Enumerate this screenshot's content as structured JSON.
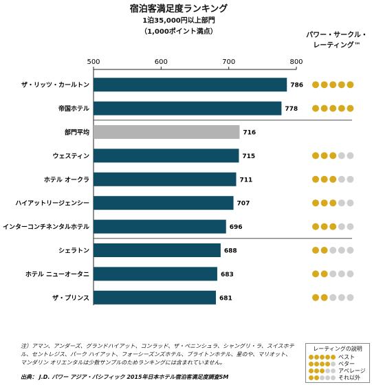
{
  "header": {
    "title": "宿泊客満足度ランキング",
    "subtitle_line1": "1泊35,000円以上部門",
    "subtitle_line2": "（1,000ポイント満点）",
    "power_circle_header_line1": "パワー・サークル・",
    "power_circle_header_line2": "レーティング™"
  },
  "colors": {
    "bar": "#0e4d64",
    "bar_average": "#b3b3b3",
    "dot_filled": "#d6a91f",
    "dot_empty": "#cfcfcf"
  },
  "chart_data": {
    "type": "bar",
    "orientation": "horizontal",
    "title": "宿泊客満足度ランキング",
    "xlim": [
      500,
      800
    ],
    "x_ticks": [
      500,
      600,
      700,
      800
    ],
    "categories": [
      "ザ・リッツ・カールトン",
      "帝国ホテル",
      "部門平均",
      "ウェスティン",
      "ホテル オークラ",
      "ハイアットリージェンシー",
      "インターコンチネンタルホテル",
      "シェラトン",
      "ホテル ニューオータニ",
      "ザ・プリンス"
    ],
    "values": [
      786,
      778,
      716,
      715,
      711,
      707,
      696,
      688,
      683,
      681
    ],
    "highlight": [
      false,
      false,
      true,
      false,
      false,
      false,
      false,
      false,
      false,
      false
    ],
    "power_circles": [
      5,
      5,
      null,
      3,
      3,
      3,
      3,
      2,
      2,
      2
    ],
    "separators_after_index": [
      1,
      6
    ]
  },
  "footer": {
    "note": "注）アマン、アンダーズ、グランドハイアット、コンラッド、ザ・ペニンシュラ、シャングリ・ラ、スイスホテル、セントレジス、パーク ハイアット、フォーシーズンズホテル、ブライトンホテル、星のや、マリオット、マンダリン オリエンタルは少数サンプルのためランキングには含まれていません。",
    "source": "出典： J.D. パワー アジア・パシフィック 2015年日本ホテル宿泊客満足度調査SM"
  },
  "legend": {
    "title": "レーティングの説明",
    "items": [
      {
        "filled": 5,
        "label": "ベスト"
      },
      {
        "filled": 4,
        "label": "ベター"
      },
      {
        "filled": 3,
        "label": "アベレージ"
      },
      {
        "filled": 2,
        "label": "それ以外"
      }
    ]
  }
}
